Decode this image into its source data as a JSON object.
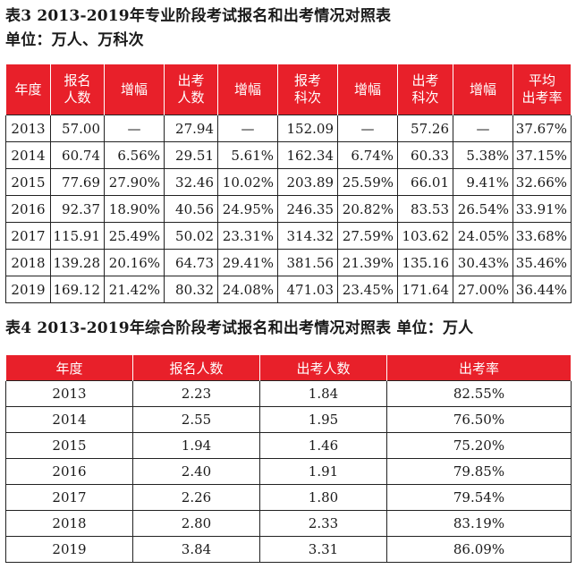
{
  "table3": {
    "title": "表3  2013-2019年专业阶段考试报名和出考情况对照表",
    "unit": "单位：万人、万科次",
    "headers": [
      [
        "年度"
      ],
      [
        "报名",
        "人数"
      ],
      [
        "增幅"
      ],
      [
        "出考",
        "人数"
      ],
      [
        "增幅"
      ],
      [
        "报考",
        "科次"
      ],
      [
        "增幅"
      ],
      [
        "出考",
        "科次"
      ],
      [
        "增幅"
      ],
      [
        "平均",
        "出考率"
      ]
    ],
    "rows": [
      [
        "2013",
        "57.00",
        "—",
        "27.94",
        "—",
        "152.09",
        "—",
        "57.26",
        "—",
        "37.67%"
      ],
      [
        "2014",
        "60.74",
        "6.56%",
        "29.51",
        "5.61%",
        "162.34",
        "6.74%",
        "60.33",
        "5.38%",
        "37.15%"
      ],
      [
        "2015",
        "77.69",
        "27.90%",
        "32.46",
        "10.02%",
        "203.89",
        "25.59%",
        "66.01",
        "9.41%",
        "32.66%"
      ],
      [
        "2016",
        "92.37",
        "18.90%",
        "40.56",
        "24.95%",
        "246.35",
        "20.82%",
        "83.53",
        "26.54%",
        "33.91%"
      ],
      [
        "2017",
        "115.91",
        "25.49%",
        "50.02",
        "23.31%",
        "314.32",
        "27.59%",
        "103.62",
        "24.05%",
        "33.68%"
      ],
      [
        "2018",
        "139.28",
        "20.16%",
        "64.73",
        "29.41%",
        "381.56",
        "21.39%",
        "135.16",
        "30.43%",
        "35.46%"
      ],
      [
        "2019",
        "169.12",
        "21.42%",
        "80.32",
        "24.08%",
        "471.03",
        "23.45%",
        "171.64",
        "27.00%",
        "36.44%"
      ]
    ]
  },
  "table4": {
    "title": "表4  2013-2019年综合阶段考试报名和出考情况对照表  单位：万人",
    "headers": [
      "年度",
      "报名人数",
      "出考人数",
      "出考率"
    ],
    "rows": [
      [
        "2013",
        "2.23",
        "1.84",
        "82.55%"
      ],
      [
        "2014",
        "2.55",
        "1.95",
        "76.50%"
      ],
      [
        "2015",
        "1.94",
        "1.46",
        "75.20%"
      ],
      [
        "2016",
        "2.40",
        "1.91",
        "79.85%"
      ],
      [
        "2017",
        "2.26",
        "1.80",
        "79.54%"
      ],
      [
        "2018",
        "2.80",
        "2.33",
        "83.19%"
      ],
      [
        "2019",
        "3.84",
        "3.31",
        "86.09%"
      ]
    ]
  },
  "colors": {
    "header_bg": "#e8202a",
    "header_text": "#ffffff",
    "border": "#222222"
  }
}
